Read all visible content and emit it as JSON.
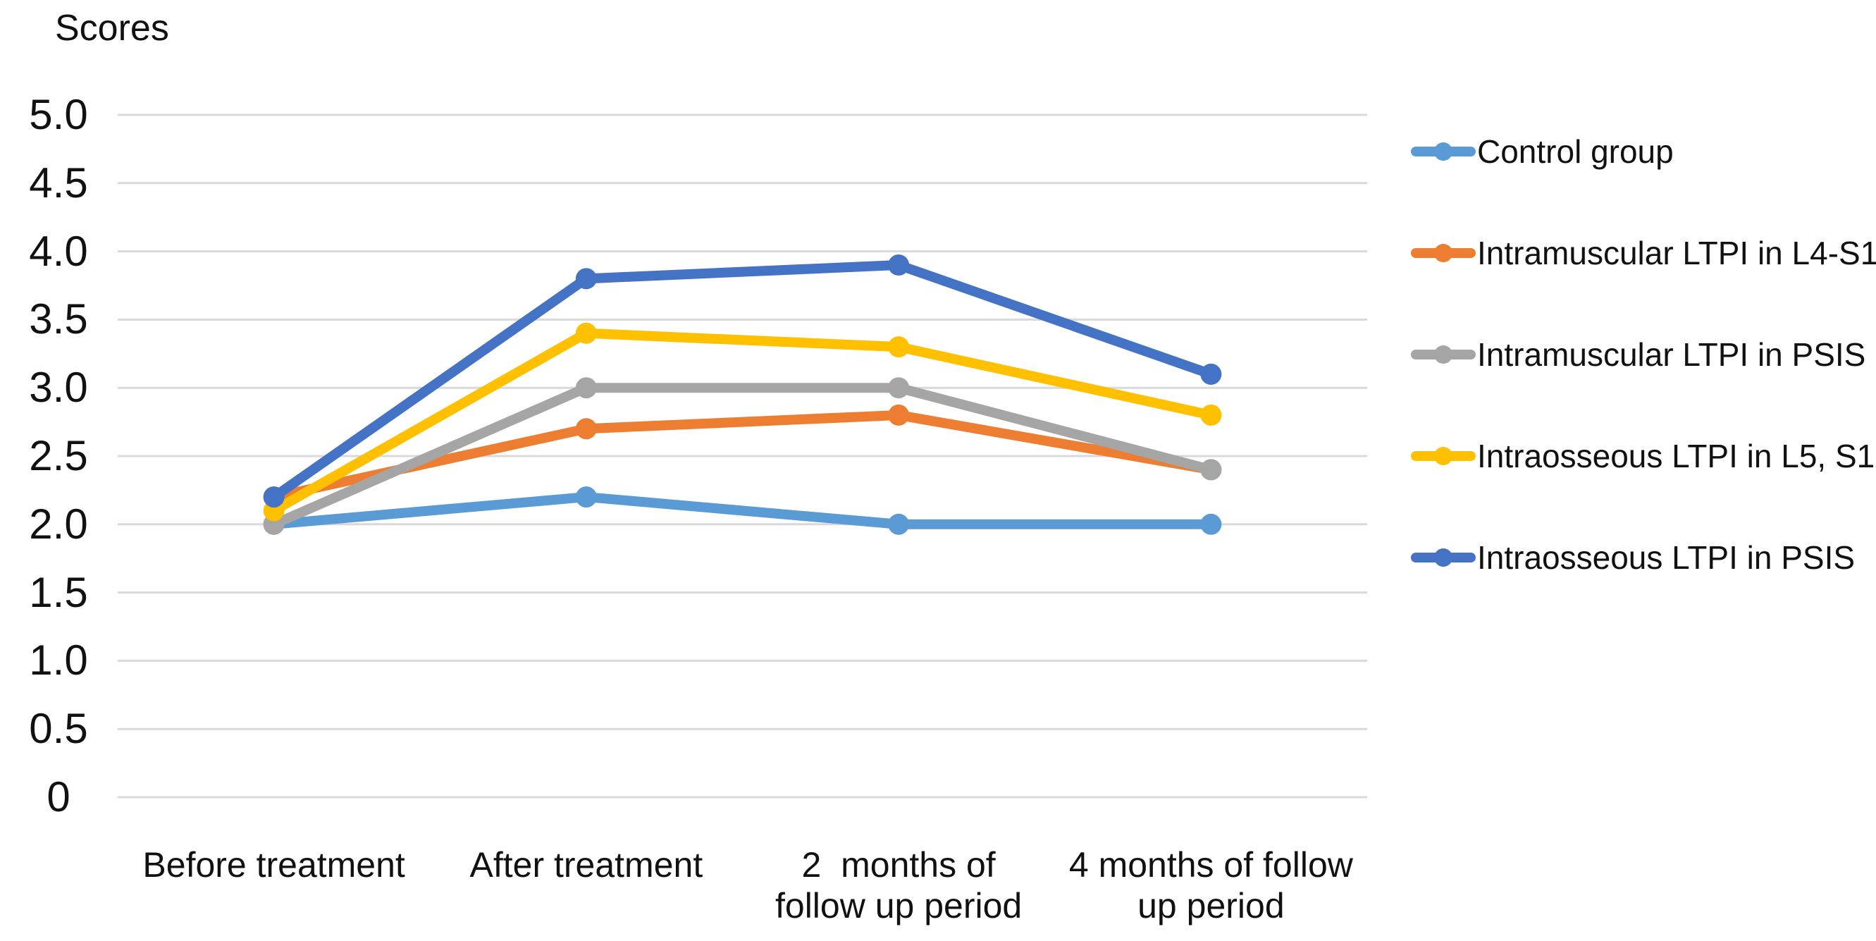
{
  "chart_data": {
    "type": "line",
    "title": "Scores",
    "xlabel": "",
    "ylabel": "Scores",
    "categories": [
      "Before treatment",
      "After treatment",
      "2  months of\nfollow up period",
      "4 months of follow\nup period"
    ],
    "series": [
      {
        "name": "Control group",
        "color": "#5B9BD5",
        "values": [
          2.0,
          2.2,
          2.0,
          2.0
        ]
      },
      {
        "name": "Intramuscular LTPI in L4-S1",
        "color": "#ED7D31",
        "values": [
          2.2,
          2.7,
          2.8,
          2.4
        ]
      },
      {
        "name": "Intramuscular LTPI in PSIS",
        "color": "#A5A5A5",
        "values": [
          2.0,
          3.0,
          3.0,
          2.4
        ]
      },
      {
        "name": "Intraosseous LTPI in L5, S1",
        "color": "#FFC000",
        "values": [
          2.1,
          3.4,
          3.3,
          2.8
        ]
      },
      {
        "name": "Intraosseous LTPI in PSIS",
        "color": "#4472C4",
        "values": [
          2.2,
          3.8,
          3.9,
          3.1
        ]
      }
    ],
    "ylim": [
      0,
      5
    ],
    "yticks": [
      "5.0",
      "4.5",
      "4.0",
      "3.5",
      "3.0",
      "2.5",
      "2.0",
      "1.5",
      "1.0",
      "0.5",
      "0"
    ],
    "ytick_values": [
      5,
      4.5,
      4,
      3.5,
      3,
      2.5,
      2,
      1.5,
      1,
      0.5,
      0
    ],
    "grid": "horizontal",
    "gridline_color": "#D9D9D9",
    "text_color": "#111111",
    "legend_position": "right",
    "marker": "circle"
  }
}
